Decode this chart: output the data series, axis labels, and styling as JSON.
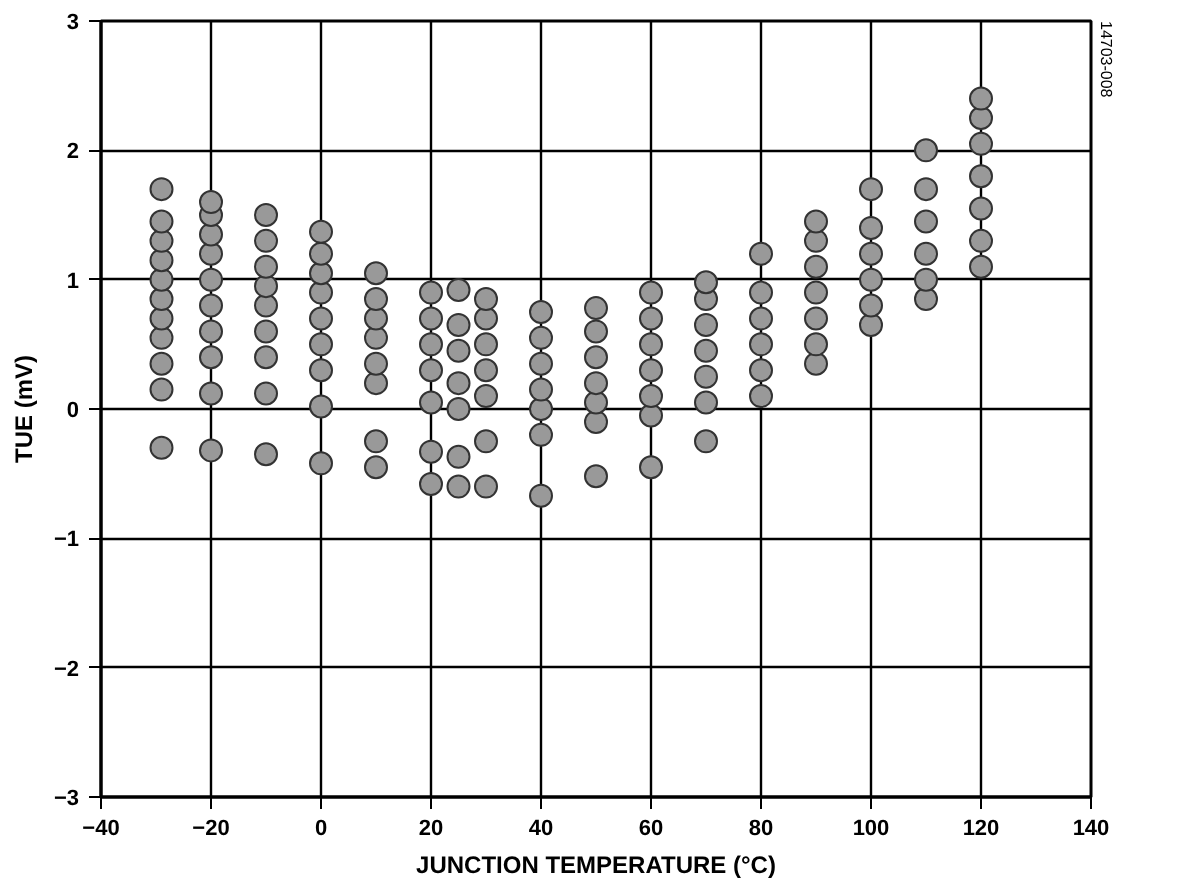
{
  "chart_data": {
    "type": "scatter",
    "xlabel": "JUNCTION TEMPERATURE (°C)",
    "ylabel": "TUE (mV)",
    "x": [
      -29,
      -29,
      -29,
      -29,
      -29,
      -29,
      -29,
      -29,
      -29,
      -29,
      -29,
      -20,
      -20,
      -20,
      -20,
      -20,
      -20,
      -20,
      -20,
      -20,
      -20,
      -10,
      -10,
      -10,
      -10,
      -10,
      -10,
      -10,
      -10,
      -10,
      0,
      0,
      0,
      0,
      0,
      0,
      0,
      0,
      0,
      10,
      10,
      10,
      10,
      10,
      10,
      10,
      10,
      20,
      20,
      20,
      20,
      20,
      20,
      20,
      25,
      25,
      25,
      25,
      25,
      25,
      25,
      30,
      30,
      30,
      30,
      30,
      30,
      30,
      40,
      40,
      40,
      40,
      40,
      40,
      40,
      50,
      50,
      50,
      50,
      50,
      50,
      50,
      60,
      60,
      60,
      60,
      60,
      60,
      60,
      70,
      70,
      70,
      70,
      70,
      70,
      70,
      80,
      80,
      80,
      80,
      80,
      80,
      90,
      90,
      90,
      90,
      90,
      90,
      90,
      100,
      100,
      100,
      100,
      100,
      100,
      110,
      110,
      110,
      110,
      110,
      110,
      120,
      120,
      120,
      120,
      120,
      120,
      120
    ],
    "series": [
      {
        "color": "#999999",
        "values": [
          -0.3,
          0.15,
          0.35,
          0.55,
          0.7,
          0.85,
          1.0,
          1.15,
          1.3,
          1.45,
          1.7,
          -0.32,
          0.12,
          0.4,
          0.6,
          0.8,
          1.0,
          1.2,
          1.35,
          1.5,
          1.6,
          -0.35,
          0.12,
          0.4,
          0.6,
          0.8,
          0.95,
          1.1,
          1.3,
          1.5,
          -0.42,
          0.02,
          0.3,
          0.5,
          0.7,
          0.9,
          1.05,
          1.2,
          1.37,
          -0.45,
          -0.25,
          0.2,
          0.35,
          0.55,
          0.7,
          0.85,
          1.05,
          -0.58,
          -0.33,
          0.05,
          0.3,
          0.5,
          0.7,
          0.9,
          -0.6,
          -0.37,
          0.0,
          0.2,
          0.45,
          0.65,
          0.92,
          -0.6,
          -0.25,
          0.1,
          0.3,
          0.5,
          0.7,
          0.85,
          -0.67,
          -0.2,
          0.0,
          0.15,
          0.35,
          0.55,
          0.75,
          -0.52,
          -0.1,
          0.05,
          0.2,
          0.4,
          0.6,
          0.78,
          -0.45,
          -0.05,
          0.1,
          0.3,
          0.5,
          0.7,
          0.9,
          -0.25,
          0.05,
          0.25,
          0.45,
          0.65,
          0.85,
          0.98,
          0.1,
          0.3,
          0.5,
          0.7,
          0.9,
          1.2,
          0.35,
          0.5,
          0.7,
          0.9,
          1.1,
          1.3,
          1.45,
          0.65,
          0.8,
          1.0,
          1.2,
          1.4,
          1.7,
          0.85,
          1.0,
          1.2,
          1.45,
          1.7,
          2.0,
          1.1,
          1.3,
          1.55,
          1.8,
          2.05,
          2.25,
          2.4
        ]
      }
    ],
    "xlim": [
      -40,
      140
    ],
    "xticks": [
      {
        "value": -40,
        "label": "−40"
      },
      {
        "value": -20,
        "label": "−20"
      },
      0,
      20,
      40,
      60,
      80,
      100,
      120,
      140
    ],
    "ylim": [
      -3,
      3
    ],
    "yticks": [
      {
        "value": -3,
        "label": "−3"
      },
      {
        "value": -2,
        "label": "−2"
      },
      {
        "value": -1,
        "label": "−1"
      },
      0,
      1,
      2,
      3
    ],
    "grid": true,
    "marker": "circle",
    "annotations": [
      "14703-008"
    ]
  }
}
